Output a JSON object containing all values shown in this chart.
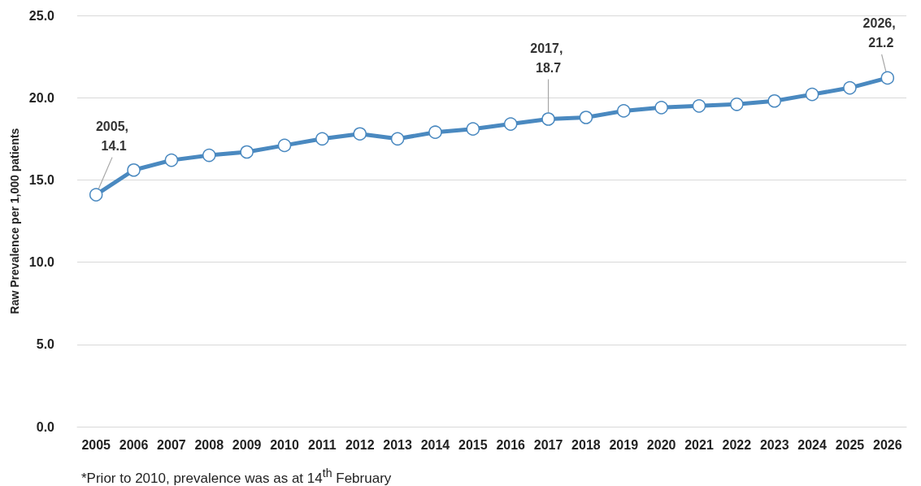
{
  "chart_data": {
    "type": "line",
    "ylabel": "Raw Prevalence per 1,000 patients",
    "categories": [
      "2005",
      "2006",
      "2007",
      "2008",
      "2009",
      "2010",
      "2011",
      "2012",
      "2013",
      "2014",
      "2015",
      "2016",
      "2017",
      "2018",
      "2019",
      "2020",
      "2021",
      "2022",
      "2023",
      "2024",
      "2025",
      "2026"
    ],
    "series": [
      {
        "color": "#4a89c0",
        "values": [
          14.1,
          15.6,
          16.2,
          16.5,
          16.7,
          17.1,
          17.5,
          17.8,
          17.5,
          17.9,
          18.1,
          18.4,
          18.7,
          18.8,
          19.2,
          19.4,
          19.5,
          19.6,
          19.8,
          20.2,
          20.6,
          21.2
        ]
      }
    ],
    "ylim": [
      0,
      25
    ],
    "yticks": [
      {
        "value": 0,
        "label": "0.0"
      },
      {
        "value": 5,
        "label": "5.0"
      },
      {
        "value": 10,
        "label": "10.0"
      },
      {
        "value": 15,
        "label": "15.0"
      },
      {
        "value": 20,
        "label": "20.0"
      },
      {
        "value": 25,
        "label": "25.0"
      }
    ],
    "grid": "y",
    "marker": "circle",
    "line_style": "solid",
    "annotations": [
      {
        "text": "2005, 14.1",
        "x": "2005",
        "y": 14.1
      },
      {
        "text": "2017, 18.7",
        "x": "2017",
        "y": 18.7
      },
      {
        "text": "2026, 21.2",
        "x": "2026",
        "y": 21.2
      },
      "*Prior to 2010, prevalence was as at 14$^{th}$ February"
    ]
  }
}
